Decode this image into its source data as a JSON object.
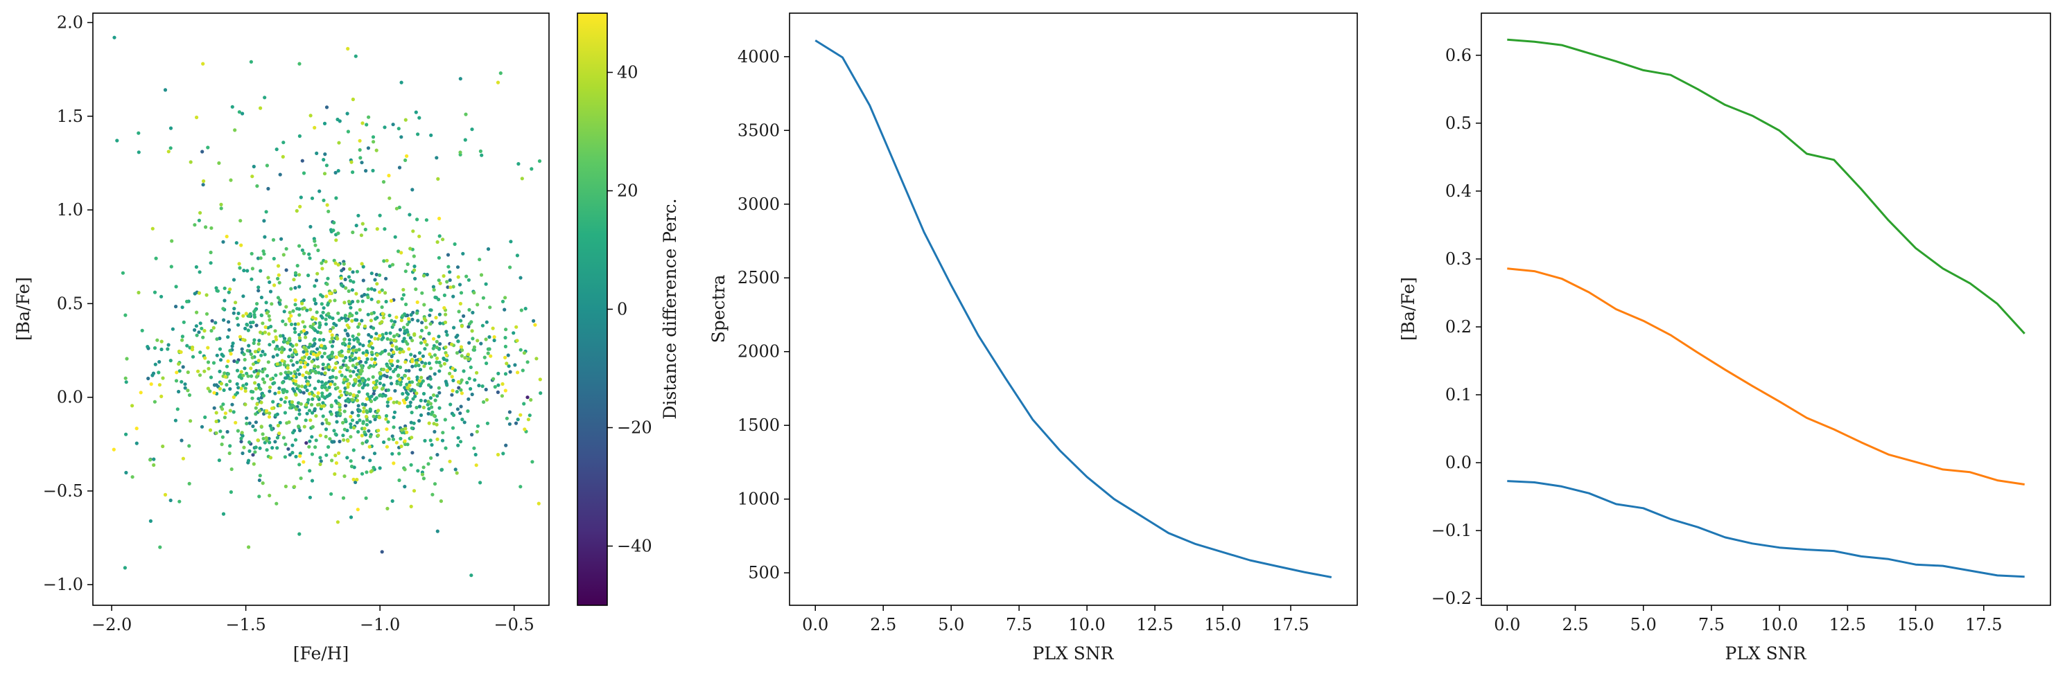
{
  "figure": {
    "background": "#ffffff",
    "axis_color": "#000000"
  },
  "chart_data": [
    {
      "type": "scatter",
      "title": "",
      "xlabel": "[Fe/H]",
      "ylabel": "[Ba/Fe]",
      "xlim": [
        -2.07,
        -0.37
      ],
      "ylim": [
        -1.11,
        2.05
      ],
      "x_ticks": [
        -2.0,
        -1.5,
        -1.0,
        -0.5
      ],
      "x_tick_labels": [
        "−2.0",
        "−1.5",
        "−1.0",
        "−0.5"
      ],
      "y_ticks": [
        -1.0,
        -0.5,
        0.0,
        0.5,
        1.0,
        1.5,
        2.0
      ],
      "y_tick_labels": [
        "−1.0",
        "−0.5",
        "0.0",
        "0.5",
        "1.0",
        "1.5",
        "2.0"
      ],
      "grid": false,
      "colormap": "viridis",
      "point_count": 2000,
      "cloud_distribution": {
        "feh_range": [
          -2.0,
          -0.4
        ],
        "feh_peak": -1.15,
        "baf_center": 0.15,
        "baf_spread": 0.28,
        "outlier_fraction": 0.08,
        "color_value_range": [
          -5,
          50
        ],
        "color_value_typical": 12
      },
      "outliers": [
        {
          "x": -1.99,
          "y": 1.92,
          "c": 5
        },
        {
          "x": -1.98,
          "y": 1.37,
          "c": 8
        },
        {
          "x": -1.95,
          "y": -0.91,
          "c": 10
        },
        {
          "x": -1.9,
          "y": 1.41,
          "c": 12
        },
        {
          "x": -1.8,
          "y": 1.64,
          "c": 0
        },
        {
          "x": -1.78,
          "y": 1.33,
          "c": 15
        },
        {
          "x": -1.82,
          "y": -0.8,
          "c": 20
        },
        {
          "x": -1.66,
          "y": 1.78,
          "c": 45
        },
        {
          "x": -1.6,
          "y": 1.25,
          "c": 30
        },
        {
          "x": -1.55,
          "y": 1.55,
          "c": 8
        },
        {
          "x": -1.48,
          "y": 1.79,
          "c": 15
        },
        {
          "x": -1.43,
          "y": 1.6,
          "c": 10
        },
        {
          "x": -1.36,
          "y": 1.36,
          "c": 12
        },
        {
          "x": -1.3,
          "y": 1.78,
          "c": 20
        },
        {
          "x": -1.12,
          "y": 1.86,
          "c": 45
        },
        {
          "x": -1.09,
          "y": 1.82,
          "c": 10
        },
        {
          "x": -1.1,
          "y": 1.59,
          "c": 40
        },
        {
          "x": -0.92,
          "y": 1.68,
          "c": 5
        },
        {
          "x": -0.7,
          "y": 1.7,
          "c": 0
        },
        {
          "x": -0.68,
          "y": 1.51,
          "c": 25
        },
        {
          "x": -0.55,
          "y": 1.73,
          "c": 20
        },
        {
          "x": -0.56,
          "y": 1.68,
          "c": 45
        },
        {
          "x": -0.66,
          "y": -0.95,
          "c": 10
        },
        {
          "x": -1.78,
          "y": -0.55,
          "c": 0
        },
        {
          "x": -1.8,
          "y": -0.52,
          "c": 45
        },
        {
          "x": -0.45,
          "y": 0.0,
          "c": -40
        }
      ]
    },
    {
      "type": "colorbar",
      "label": "Distance difference Perc.",
      "colormap": "viridis",
      "range": [
        -50,
        50
      ],
      "ticks": [
        -40,
        -20,
        0,
        20,
        40
      ],
      "tick_labels": [
        "−40",
        "−20",
        "0",
        "20",
        "40"
      ]
    },
    {
      "type": "line",
      "title": "",
      "xlabel": "PLX SNR",
      "ylabel": "Spectra",
      "xlim": [
        -0.95,
        19.95
      ],
      "ylim": [
        280,
        4295
      ],
      "x_ticks": [
        0.0,
        2.5,
        5.0,
        7.5,
        10.0,
        12.5,
        15.0,
        17.5
      ],
      "x_tick_labels": [
        "0.0",
        "2.5",
        "5.0",
        "7.5",
        "10.0",
        "12.5",
        "15.0",
        "17.5"
      ],
      "y_ticks": [
        500,
        1000,
        1500,
        2000,
        2500,
        3000,
        3500,
        4000
      ],
      "y_tick_labels": [
        "500",
        "1000",
        "1500",
        "2000",
        "2500",
        "3000",
        "3500",
        "4000"
      ],
      "grid": false,
      "x": [
        0,
        1,
        2,
        3,
        4,
        5,
        6,
        7,
        8,
        9,
        10,
        11,
        12,
        13,
        14,
        15,
        16,
        17,
        18,
        19
      ],
      "series": [
        {
          "color": "#1f77b4",
          "values": [
            4110,
            3995,
            3670,
            3240,
            2810,
            2450,
            2110,
            1820,
            1540,
            1330,
            1150,
            1000,
            885,
            770,
            695,
            640,
            585,
            545,
            505,
            470
          ]
        }
      ]
    },
    {
      "type": "line",
      "title": "",
      "xlabel": "PLX SNR",
      "ylabel": "[Ba/Fe]",
      "xlim": [
        -0.95,
        19.95
      ],
      "ylim": [
        -0.21,
        0.662
      ],
      "x_ticks": [
        0.0,
        2.5,
        5.0,
        7.5,
        10.0,
        12.5,
        15.0,
        17.5
      ],
      "x_tick_labels": [
        "0.0",
        "2.5",
        "5.0",
        "7.5",
        "10.0",
        "12.5",
        "15.0",
        "17.5"
      ],
      "y_ticks": [
        -0.2,
        -0.1,
        0.0,
        0.1,
        0.2,
        0.3,
        0.4,
        0.5,
        0.6
      ],
      "y_tick_labels": [
        "−0.2",
        "−0.1",
        "0.0",
        "0.1",
        "0.2",
        "0.3",
        "0.4",
        "0.5",
        "0.6"
      ],
      "grid": false,
      "x": [
        0,
        1,
        2,
        3,
        4,
        5,
        6,
        7,
        8,
        9,
        10,
        11,
        12,
        13,
        14,
        15,
        16,
        17,
        18,
        19
      ],
      "series": [
        {
          "color": "#1f77b4",
          "values": [
            -0.027,
            -0.029,
            -0.035,
            -0.045,
            -0.061,
            -0.067,
            -0.083,
            -0.095,
            -0.11,
            -0.119,
            -0.125,
            -0.128,
            -0.13,
            -0.138,
            -0.142,
            -0.15,
            -0.152,
            -0.159,
            -0.166,
            -0.168
          ]
        },
        {
          "color": "#ff7f0e",
          "values": [
            0.286,
            0.282,
            0.271,
            0.251,
            0.226,
            0.209,
            0.188,
            0.162,
            0.137,
            0.113,
            0.09,
            0.066,
            0.049,
            0.03,
            0.012,
            0.001,
            -0.01,
            -0.014,
            -0.026,
            -0.032
          ]
        },
        {
          "color": "#2ca02c",
          "values": [
            0.623,
            0.62,
            0.615,
            0.603,
            0.591,
            0.578,
            0.571,
            0.55,
            0.527,
            0.511,
            0.489,
            0.455,
            0.446,
            0.403,
            0.357,
            0.316,
            0.286,
            0.264,
            0.234,
            0.19
          ]
        }
      ]
    }
  ]
}
